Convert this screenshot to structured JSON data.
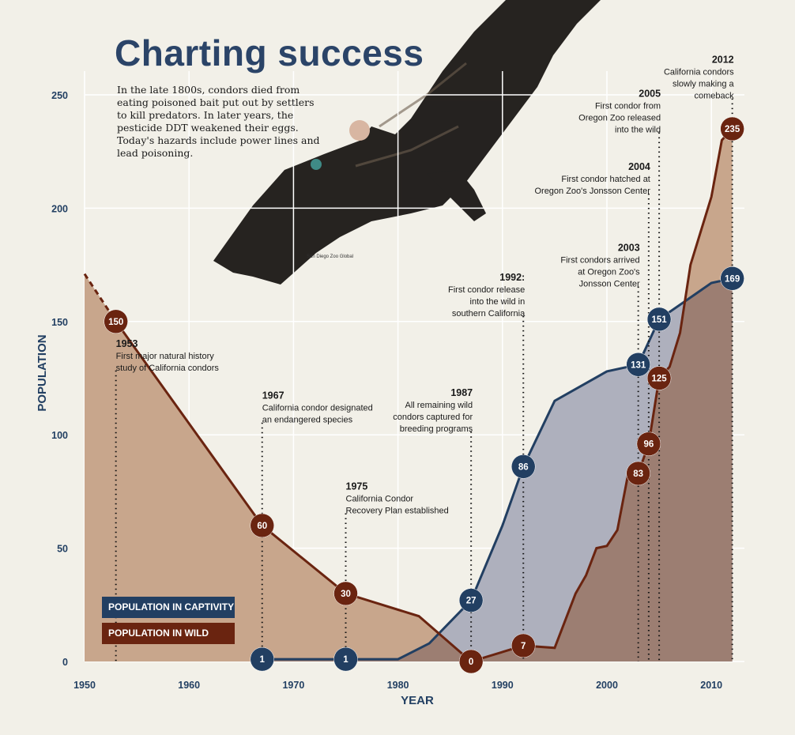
{
  "title": "Charting success",
  "intro": "In the late 1800s, condors died from eating poisoned bait put out by settlers to kill predators. In later years, the pesticide DDT weakened their eggs. Today's hazards include power lines and lead poisoning.",
  "photo_credit": "San Diego Zoo Global",
  "legend": {
    "captivity": "POPULATION IN CAPTIVITY",
    "wild": "POPULATION IN WILD"
  },
  "colors": {
    "background": "#f2f0e8",
    "captivity": "#223f62",
    "wild": "#6a2410",
    "wild_fill": "#c8a68c",
    "captivity_fill": "#aeb0bd",
    "overlap_fill": "#9c7e72",
    "title": "#2b4468"
  },
  "chart_data": {
    "type": "area",
    "xlabel": "YEAR",
    "ylabel": "POPULATION",
    "xlim": [
      1950,
      2013
    ],
    "ylim": [
      0,
      250
    ],
    "x_ticks": [
      1950,
      1960,
      1970,
      1980,
      1990,
      2000,
      2010
    ],
    "y_ticks": [
      0,
      50,
      100,
      150,
      200,
      250
    ],
    "grid": true,
    "series": [
      {
        "name": "POPULATION IN CAPTIVITY",
        "x": [
          1967,
          1975,
          1980,
          1983,
          1987,
          1990,
          1992,
          1995,
          2000,
          2003,
          2005,
          2010,
          2012
        ],
        "values": [
          1,
          1,
          1,
          8,
          27,
          60,
          86,
          115,
          128,
          131,
          151,
          167,
          169
        ]
      },
      {
        "name": "POPULATION IN WILD",
        "x": [
          1950,
          1953,
          1967,
          1975,
          1982,
          1987,
          1992,
          1995,
          1997,
          1998,
          1999,
          2000,
          2001,
          2002,
          2003,
          2004,
          2005,
          2006,
          2007,
          2008,
          2009,
          2010,
          2011,
          2012
        ],
        "values": [
          171,
          150,
          60,
          30,
          20,
          0,
          7,
          6,
          30,
          38,
          50,
          51,
          58,
          82,
          83,
          96,
          125,
          130,
          145,
          175,
          190,
          205,
          230,
          235
        ],
        "dashed_until": 1953
      }
    ],
    "labeled_points": [
      {
        "series": "wild",
        "year": 1953,
        "value": 150
      },
      {
        "series": "wild",
        "year": 1967,
        "value": 60
      },
      {
        "series": "captivity",
        "year": 1967,
        "value": 1
      },
      {
        "series": "wild",
        "year": 1975,
        "value": 30
      },
      {
        "series": "captivity",
        "year": 1975,
        "value": 1
      },
      {
        "series": "captivity",
        "year": 1987,
        "value": 27
      },
      {
        "series": "wild",
        "year": 1987,
        "value": 0
      },
      {
        "series": "captivity",
        "year": 1992,
        "value": 86
      },
      {
        "series": "wild",
        "year": 1992,
        "value": 7
      },
      {
        "series": "captivity",
        "year": 2003,
        "value": 131
      },
      {
        "series": "wild",
        "year": 2003,
        "value": 83
      },
      {
        "series": "wild",
        "year": 2004,
        "value": 96
      },
      {
        "series": "captivity",
        "year": 2005,
        "value": 151
      },
      {
        "series": "wild",
        "year": 2005,
        "value": 125
      },
      {
        "series": "wild",
        "year": 2012,
        "value": 235
      },
      {
        "series": "captivity",
        "year": 2012,
        "value": 169
      }
    ],
    "annotations": [
      {
        "year": 1953,
        "top": 127,
        "align": "left",
        "heading": "1953",
        "lines": [
          "First major natural history",
          "study of California condors"
        ]
      },
      {
        "year": 1967,
        "top": 104,
        "align": "left",
        "heading": "1967",
        "lines": [
          "California condor designated",
          "an endangered species"
        ]
      },
      {
        "year": 1975,
        "top": 64,
        "align": "left",
        "heading": "1975",
        "lines": [
          "California Condor",
          "Recovery Plan established"
        ]
      },
      {
        "year": 1987,
        "top": 100,
        "align": "right",
        "heading": "1987",
        "lines": [
          "All remaining wild",
          "condors captured for",
          "breeding programs"
        ]
      },
      {
        "year": 1992,
        "top": 151,
        "align": "right",
        "heading": "1992:",
        "lines": [
          "First condor release",
          "into the wild in",
          "southern California"
        ]
      },
      {
        "year": 2003,
        "top": 164,
        "align": "right",
        "heading": "2003",
        "lines": [
          "First condors arrived",
          "at Oregon Zoo's",
          "Jonsson Center"
        ]
      },
      {
        "year": 2004,
        "top": 205,
        "align": "right",
        "heading": "2004",
        "lines": [
          "First condor hatched at",
          "Oregon Zoo's Jonsson Center"
        ]
      },
      {
        "year": 2005,
        "top": 232,
        "align": "right",
        "heading": "2005",
        "lines": [
          "First condor from",
          "Oregon Zoo released",
          "into the wild"
        ]
      },
      {
        "year": 2012,
        "top": 247,
        "align": "right",
        "heading": "2012",
        "lines": [
          "California condors",
          "slowly making a",
          "comeback"
        ]
      }
    ]
  }
}
